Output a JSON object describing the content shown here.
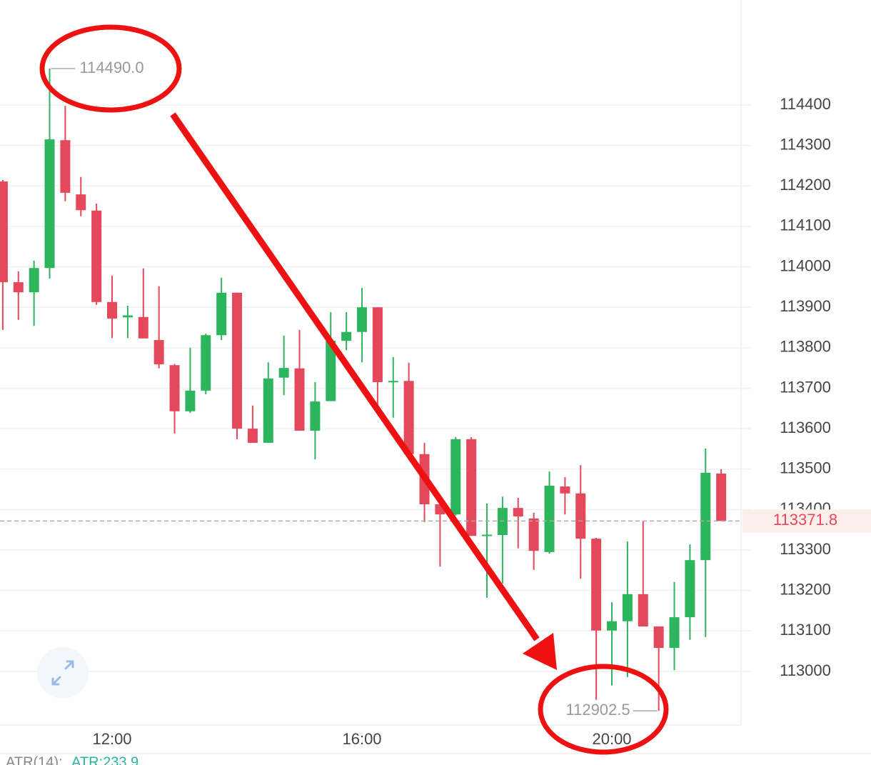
{
  "chart_data": {
    "type": "candlestick",
    "categories": [
      null,
      null,
      null,
      null,
      null,
      null,
      null,
      "12:00",
      null,
      null,
      null,
      null,
      null,
      null,
      null,
      null,
      null,
      null,
      null,
      null,
      null,
      null,
      null,
      "16:00",
      null,
      null,
      null,
      null,
      null,
      null,
      null,
      null,
      null,
      null,
      null,
      null,
      null,
      null,
      null,
      "20:00",
      null,
      null,
      null,
      null,
      null,
      null,
      null
    ],
    "open": [
      114211,
      113962,
      113937,
      113997,
      114313,
      114179,
      114139,
      113913,
      113875,
      113876,
      113819,
      113757,
      113643,
      113694,
      113831,
      113936,
      113600,
      113565,
      113726,
      113749,
      113595,
      113668,
      113817,
      113839,
      113900,
      113715,
      113718,
      113537,
      113413,
      113388,
      113574,
      113335,
      113337,
      113404,
      113378,
      113295,
      113457,
      113440,
      113328,
      113101,
      113124,
      113191,
      113111,
      113058,
      113134,
      113275,
      113489
    ],
    "high": [
      114215,
      113989,
      114015,
      114490,
      114398,
      114222,
      114156,
      113978,
      113904,
      113996,
      113952,
      113760,
      113800,
      113835,
      113973,
      113936,
      113657,
      113764,
      113830,
      113844,
      113715,
      113888,
      113888,
      113948,
      113900,
      113777,
      113763,
      113565,
      113420,
      113579,
      113579,
      113415,
      113432,
      113429,
      113392,
      113494,
      113480,
      113510,
      113330,
      113171,
      113321,
      113371,
      113111,
      113221,
      113314,
      113551,
      113500
    ],
    "low": [
      113844,
      113869,
      113854,
      113971,
      114162,
      114125,
      113906,
      113824,
      113824,
      113823,
      113749,
      113588,
      113639,
      113685,
      113819,
      113574,
      113565,
      113565,
      113683,
      113595,
      113524,
      113668,
      113794,
      113764,
      113657,
      113627,
      113537,
      113369,
      113259,
      113385,
      113335,
      113182,
      113217,
      113304,
      113251,
      113291,
      113388,
      113229,
      112930,
      112965,
      112986,
      113111,
      112902.5,
      113003,
      113078,
      113085,
      113371.8
    ],
    "close": [
      113962,
      113937,
      113997,
      114315,
      114183,
      114140,
      113913,
      113872,
      113880,
      113823,
      113759,
      113643,
      113694,
      113831,
      113936,
      113600,
      113565,
      113724,
      113750,
      113595,
      113667,
      113817,
      113839,
      113900,
      113715,
      113718,
      113537,
      113413,
      113388,
      113574,
      113335,
      113338,
      113404,
      113383,
      113298,
      113459,
      113440,
      113328,
      113101,
      113124,
      113191,
      113111,
      113058,
      113134,
      113275,
      113491,
      113371.8
    ],
    "up_color": "#2db55d",
    "down_color": "#e5485a",
    "ylim": [
      112867.5,
      114659.5
    ],
    "yticks": [
      113000,
      113100,
      113200,
      113300,
      113400,
      113500,
      113600,
      113700,
      113800,
      113900,
      114000,
      114100,
      114200,
      114300,
      114400
    ],
    "grid": true,
    "high_label": "114490.0",
    "low_label": "112902.5",
    "last_price": 113371.8,
    "indicator": "ATR(14):",
    "indicator_value": "ATR:233.9"
  }
}
